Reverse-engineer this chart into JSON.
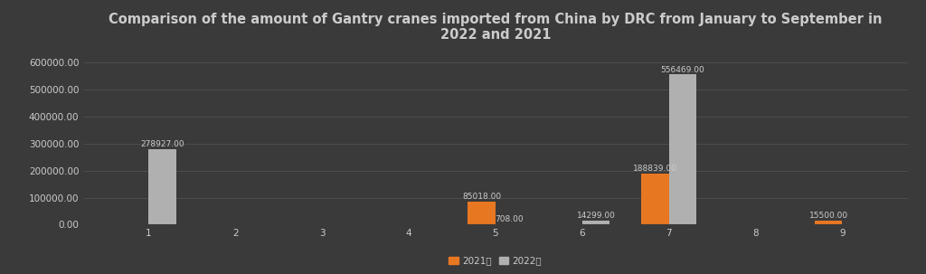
{
  "title": "Comparison of the amount of Gantry cranes imported from China by DRC from January to September in\n2022 and 2021",
  "months": [
    1,
    2,
    3,
    4,
    5,
    6,
    7,
    8,
    9
  ],
  "values_2021": [
    0,
    0,
    0,
    0,
    85018,
    0,
    188839,
    0,
    15500
  ],
  "values_2022": [
    278927,
    0,
    0,
    0,
    708,
    14299,
    556469,
    0,
    0
  ],
  "labels_2021": [
    null,
    null,
    null,
    null,
    "85018.00",
    null,
    "188839.00",
    null,
    "15500.00"
  ],
  "labels_2022": [
    "278927.00",
    null,
    null,
    null,
    "708.00",
    "14299.00",
    "556469.00",
    null,
    null
  ],
  "color_2021": "#E87722",
  "color_2022": "#B0B0B0",
  "bg_color": "#3a3a3a",
  "grid_color": "#555555",
  "text_color": "#CCCCCC",
  "legend_2021": "2021年",
  "legend_2022": "2022年",
  "ylim": [
    0,
    650000
  ],
  "yticks": [
    0,
    100000,
    200000,
    300000,
    400000,
    500000,
    600000
  ],
  "ytick_labels": [
    "0.00",
    "100000.00",
    "200000.00",
    "300000.00",
    "400000.00",
    "500000.00",
    "600000.00"
  ],
  "bar_width": 0.32,
  "title_fontsize": 10.5,
  "tick_fontsize": 7.5,
  "label_fontsize": 6.5,
  "legend_fontsize": 7.5
}
